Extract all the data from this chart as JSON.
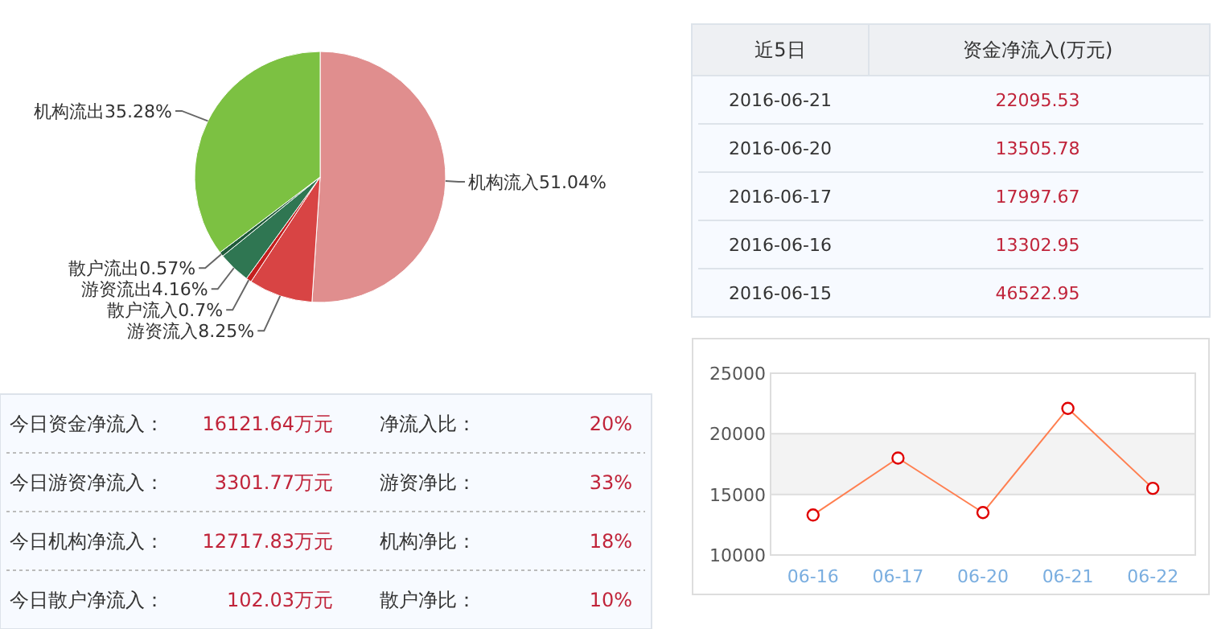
{
  "chart_data": [
    {
      "type": "pie",
      "categories": [
        "机构流入",
        "游资流入",
        "散户流入",
        "游资流出",
        "散户流出",
        "机构流出"
      ],
      "values": [
        51.04,
        8.25,
        0.7,
        4.16,
        0.57,
        35.28
      ],
      "value_labels": [
        "51.04%",
        "8.25%",
        "0.7%",
        "4.16%",
        "0.57%",
        "35.28%"
      ],
      "colors": [
        "#e08e8e",
        "#d84444",
        "#c41f1f",
        "#2f7652",
        "#1f5a3a",
        "#7cc142"
      ]
    },
    {
      "type": "other",
      "categories": [
        "近5日",
        "资金净流入(万元)"
      ],
      "cell_labels": [
        [
          "2016-06-21",
          "22095.53"
        ],
        [
          "2016-06-20",
          "13505.78"
        ],
        [
          "2016-06-17",
          "17997.67"
        ],
        [
          "2016-06-16",
          "13302.95"
        ],
        [
          "2016-06-15",
          "46522.95"
        ]
      ]
    },
    {
      "type": "other",
      "cell_labels": [
        [
          "今日资金净流入：",
          "16121.64万元",
          "净流入比：",
          "20%"
        ],
        [
          "今日游资净流入：",
          "3301.77万元",
          "游资净比：",
          "33%"
        ],
        [
          "今日机构净流入：",
          "12717.83万元",
          "机构净比：",
          "18%"
        ],
        [
          "今日散户净流入：",
          "102.03万元",
          "散户净比：",
          "10%"
        ]
      ]
    },
    {
      "type": "line",
      "categories": [
        "06-16",
        "06-17",
        "06-20",
        "06-21",
        "06-22"
      ],
      "series": [
        {
          "color": "#ff7f50",
          "values": [
            13300,
            18000,
            13500,
            22100,
            15500
          ]
        }
      ],
      "ylim": [
        10000,
        25000
      ],
      "yticks": [
        10000,
        15000,
        20000,
        25000
      ],
      "grid": "y",
      "marker": "circle",
      "bands": [
        {
          "axis": "y",
          "from": 15000,
          "to": 20000,
          "color": "#f3f3f3"
        }
      ]
    }
  ]
}
